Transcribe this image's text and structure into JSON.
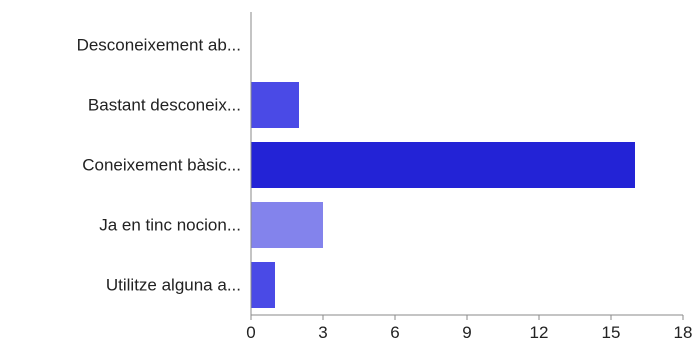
{
  "chart_data": {
    "type": "bar",
    "orientation": "horizontal",
    "categories": [
      "Desconeixement ab...",
      "Bastant desconeix...",
      "Coneixement bàsic...",
      "Ja en tinc nocion...",
      "Utilitze alguna a..."
    ],
    "values": [
      0,
      2,
      16,
      3,
      1
    ],
    "bar_colors": [
      "#4a4ae6",
      "#4a4ae6",
      "#2323d6",
      "#8383ec",
      "#4a4ae6"
    ],
    "title": "",
    "xlabel": "",
    "ylabel": "",
    "xlim": [
      0,
      18
    ],
    "xticks": [
      0,
      3,
      6,
      9,
      12,
      15,
      18
    ],
    "grid": false,
    "legend": "none"
  }
}
